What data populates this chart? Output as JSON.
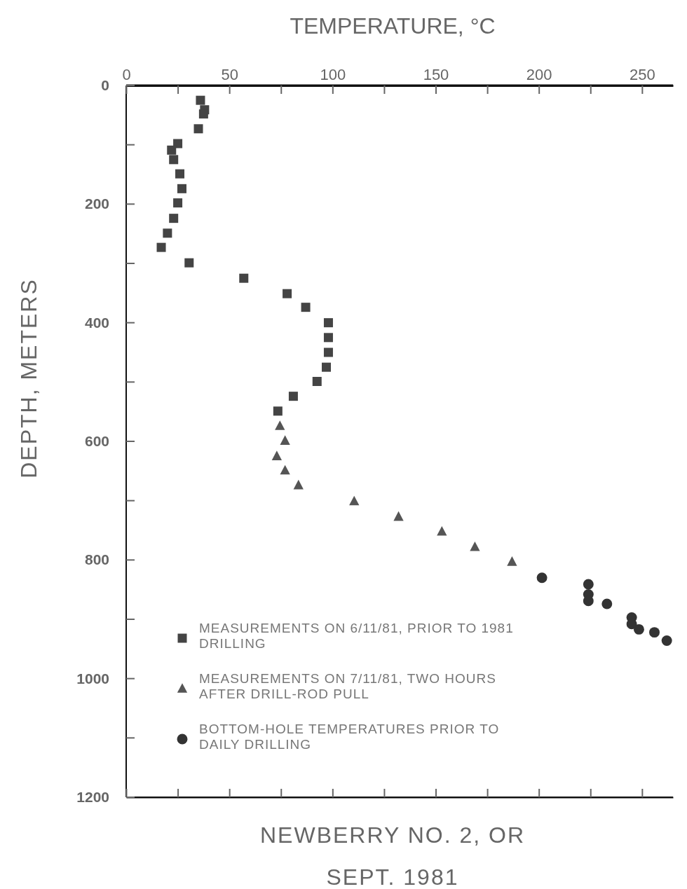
{
  "chart_data": {
    "type": "scatter",
    "xlabel": "TEMPERATURE, °C",
    "ylabel": "DEPTH, METERS",
    "annotations": [
      "NEWBERRY NO. 2, OR",
      "SEPT. 1981"
    ],
    "xlim": [
      0,
      265
    ],
    "xticks": [
      0,
      {
        "value": 25,
        "label": null
      },
      50,
      {
        "value": 75,
        "label": null
      },
      100,
      {
        "value": 125,
        "label": null
      },
      150,
      {
        "value": 175,
        "label": null
      },
      200,
      {
        "value": 225,
        "label": null
      },
      250
    ],
    "ylim": [
      1200,
      0
    ],
    "yticks": [
      0,
      {
        "value": 100,
        "label": null
      },
      200,
      {
        "value": 300,
        "label": null
      },
      400,
      {
        "value": 500,
        "label": null
      },
      600,
      {
        "value": 700,
        "label": null
      },
      800,
      {
        "value": 900,
        "label": null
      },
      1000,
      {
        "value": 1100,
        "label": null
      },
      1200
    ],
    "grid": false,
    "legend": "bottom left",
    "series": [
      {
        "name": "MEASUREMENTS ON 6/11/81, PRIOR TO 1981 DRILLING",
        "color": "#444444",
        "marker": "square",
        "x": [
          36,
          38,
          37.5,
          25,
          22,
          23,
          26,
          27,
          25,
          23,
          20,
          17,
          30.5,
          87,
          98,
          35,
          57,
          78,
          98,
          98,
          97,
          92.5,
          81,
          73.5
        ],
        "values": [
          25,
          41,
          48,
          98,
          109,
          125,
          149,
          174,
          198,
          224,
          249,
          273,
          299,
          374,
          425,
          73,
          325,
          351,
          400,
          450,
          475,
          499,
          524,
          549
        ]
      },
      {
        "name": "MEASUREMENTS ON 7/11/81, TWO HOURS AFTER DRILL-ROD PULL",
        "color": "#555555",
        "marker": "triangle",
        "x": [
          74.5,
          77,
          73,
          77,
          83.5,
          110.5,
          132,
          153,
          169,
          187
        ],
        "values": [
          574,
          599,
          625,
          649,
          674,
          701,
          727,
          752,
          778,
          803
        ]
      },
      {
        "name": "BOTTOM-HOLE TEMPERATURES PRIOR TO DAILY DRILLING",
        "color": "#333333",
        "marker": "circle",
        "x": [
          201.5,
          224,
          224,
          224,
          233,
          245,
          245,
          248.5,
          256,
          262
        ],
        "values": [
          830,
          841,
          858,
          869,
          874,
          897,
          908,
          917,
          922,
          936
        ]
      }
    ]
  }
}
